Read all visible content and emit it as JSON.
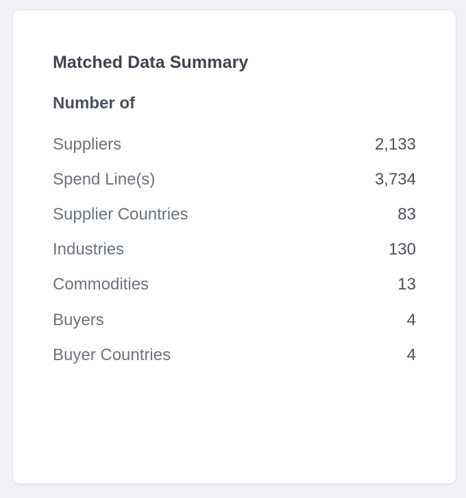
{
  "card": {
    "title": "Matched Data Summary",
    "section_label": "Number of",
    "rows": [
      {
        "label": "Suppliers",
        "value": "2,133"
      },
      {
        "label": "Spend Line(s)",
        "value": "3,734"
      },
      {
        "label": "Supplier Countries",
        "value": "83"
      },
      {
        "label": "Industries",
        "value": "130"
      },
      {
        "label": "Commodities",
        "value": "13"
      },
      {
        "label": "Buyers",
        "value": "4"
      },
      {
        "label": "Buyer Countries",
        "value": "4"
      }
    ]
  },
  "colors": {
    "background": "#f1f2f6",
    "card": "#ffffff",
    "title_text": "#3d4451",
    "label_text": "#6b7280",
    "value_text": "#4b515c"
  }
}
